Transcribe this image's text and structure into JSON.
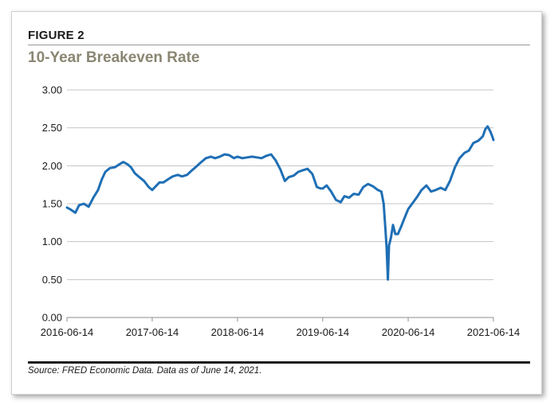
{
  "figure": {
    "label": "FIGURE 2",
    "source": "Source: FRED Economic Data. Data as of June 14, 2021."
  },
  "chart_data": {
    "type": "line",
    "title": "10-Year Breakeven Rate",
    "xlabel": "",
    "ylabel": "",
    "ylim": [
      0,
      3
    ],
    "yticks": [
      "0.00",
      "0.50",
      "1.00",
      "1.50",
      "2.00",
      "2.50",
      "3.00"
    ],
    "xticks": [
      "2016-06-14",
      "2017-06-14",
      "2018-06-14",
      "2019-06-14",
      "2020-06-14",
      "2021-06-14"
    ],
    "xrange": [
      "2016-06-14",
      "2021-06-14"
    ],
    "grid": "horizontal",
    "line_color": "#1f6fb5",
    "series": [
      {
        "x": [
          "2016-06-14",
          "2016-07-01",
          "2016-07-20",
          "2016-08-05",
          "2016-08-25",
          "2016-09-15",
          "2016-10-05",
          "2016-10-25",
          "2016-11-10",
          "2016-11-25",
          "2016-12-15",
          "2017-01-05",
          "2017-01-25",
          "2017-02-10",
          "2017-02-28",
          "2017-03-15",
          "2017-04-01",
          "2017-04-20",
          "2017-05-10",
          "2017-05-30",
          "2017-06-14",
          "2017-06-26",
          "2017-07-15",
          "2017-08-01",
          "2017-08-20",
          "2017-09-10",
          "2017-10-01",
          "2017-10-20",
          "2017-11-10",
          "2017-12-01",
          "2017-12-20",
          "2018-01-10",
          "2018-01-30",
          "2018-02-20",
          "2018-03-10",
          "2018-03-30",
          "2018-04-20",
          "2018-05-10",
          "2018-05-30",
          "2018-06-14",
          "2018-07-05",
          "2018-07-25",
          "2018-08-15",
          "2018-09-05",
          "2018-09-25",
          "2018-10-15",
          "2018-11-05",
          "2018-11-25",
          "2018-12-15",
          "2019-01-03",
          "2019-01-20",
          "2019-02-10",
          "2019-03-01",
          "2019-03-20",
          "2019-04-10",
          "2019-05-01",
          "2019-05-20",
          "2019-06-05",
          "2019-06-14",
          "2019-07-01",
          "2019-07-20",
          "2019-08-10",
          "2019-08-30",
          "2019-09-15",
          "2019-10-05",
          "2019-10-25",
          "2019-11-15",
          "2019-12-05",
          "2019-12-25",
          "2020-01-15",
          "2020-02-05",
          "2020-02-20",
          "2020-03-01",
          "2020-03-09",
          "2020-03-14",
          "2020-03-19",
          "2020-03-24",
          "2020-04-01",
          "2020-04-10",
          "2020-04-20",
          "2020-05-01",
          "2020-05-15",
          "2020-06-01",
          "2020-06-14",
          "2020-07-01",
          "2020-07-20",
          "2020-08-10",
          "2020-08-31",
          "2020-09-20",
          "2020-10-10",
          "2020-10-31",
          "2020-11-20",
          "2020-12-10",
          "2020-12-31",
          "2021-01-20",
          "2021-02-10",
          "2021-03-01",
          "2021-03-20",
          "2021-04-10",
          "2021-04-30",
          "2021-05-10",
          "2021-05-20",
          "2021-06-01",
          "2021-06-10",
          "2021-06-14"
        ],
        "y": [
          1.45,
          1.42,
          1.38,
          1.48,
          1.5,
          1.46,
          1.58,
          1.68,
          1.82,
          1.92,
          1.97,
          1.98,
          2.02,
          2.05,
          2.02,
          1.98,
          1.9,
          1.85,
          1.8,
          1.72,
          1.68,
          1.72,
          1.78,
          1.78,
          1.82,
          1.86,
          1.88,
          1.86,
          1.88,
          1.94,
          1.99,
          2.05,
          2.1,
          2.12,
          2.1,
          2.12,
          2.15,
          2.14,
          2.1,
          2.12,
          2.1,
          2.11,
          2.12,
          2.11,
          2.1,
          2.13,
          2.15,
          2.07,
          1.95,
          1.8,
          1.85,
          1.87,
          1.92,
          1.94,
          1.96,
          1.89,
          1.72,
          1.7,
          1.7,
          1.74,
          1.66,
          1.55,
          1.52,
          1.6,
          1.58,
          1.63,
          1.62,
          1.72,
          1.76,
          1.73,
          1.68,
          1.66,
          1.5,
          1.15,
          0.9,
          0.5,
          0.95,
          1.05,
          1.22,
          1.1,
          1.1,
          1.2,
          1.33,
          1.43,
          1.5,
          1.58,
          1.68,
          1.74,
          1.66,
          1.68,
          1.71,
          1.68,
          1.8,
          1.98,
          2.1,
          2.17,
          2.2,
          2.3,
          2.33,
          2.39,
          2.48,
          2.52,
          2.45,
          2.38,
          2.34
        ]
      }
    ]
  }
}
